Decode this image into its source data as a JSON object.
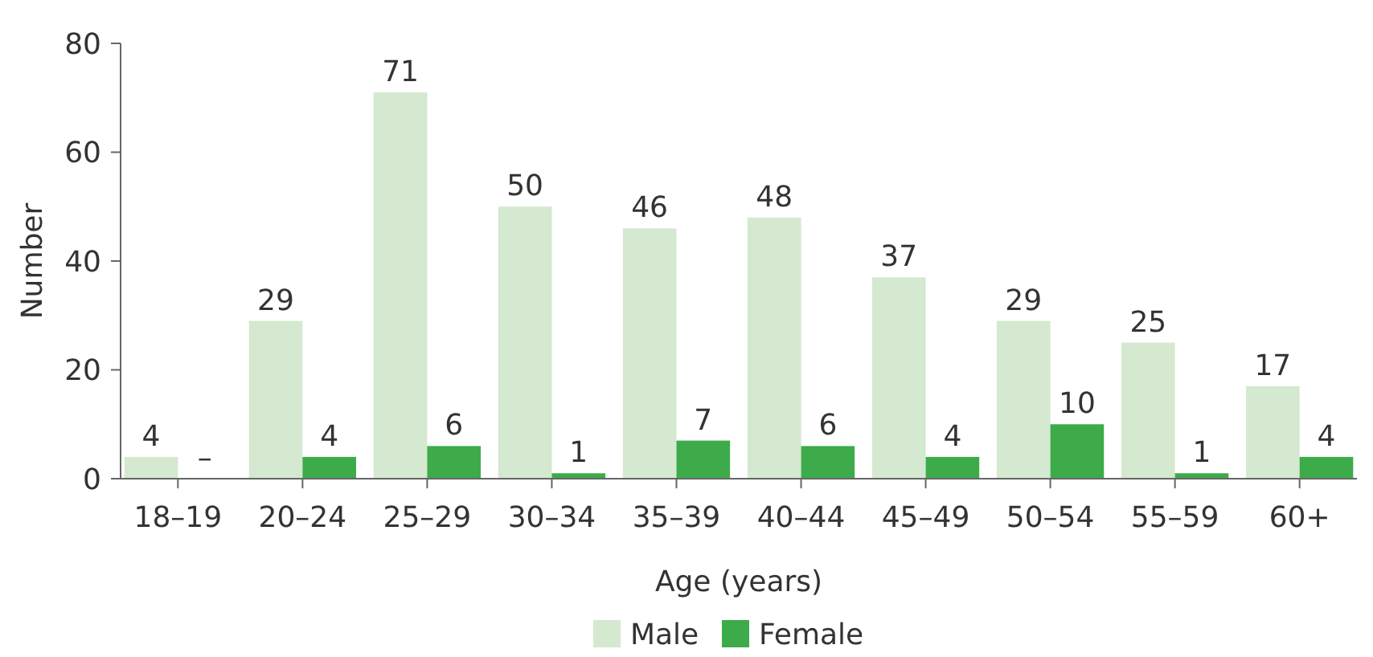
{
  "chart_data": {
    "type": "bar",
    "xlabel": "Age (years)",
    "ylabel": "Number",
    "categories": [
      "18–19",
      "20–24",
      "25–29",
      "30–34",
      "35–39",
      "40–44",
      "45–49",
      "50–54",
      "55–59",
      "60+"
    ],
    "series": [
      {
        "name": "Male",
        "color": "#d5e8d0",
        "values": [
          4,
          29,
          71,
          50,
          46,
          48,
          37,
          29,
          25,
          17
        ],
        "value_labels": [
          "4",
          "29",
          "71",
          "50",
          "46",
          "48",
          "37",
          "29",
          "25",
          "17"
        ]
      },
      {
        "name": "Female",
        "color": "#3dab4a",
        "values": [
          null,
          4,
          6,
          1,
          7,
          6,
          4,
          10,
          1,
          4
        ],
        "value_labels": [
          "–",
          "4",
          "6",
          "1",
          "7",
          "6",
          "4",
          "10",
          "1",
          "4"
        ]
      }
    ],
    "ylim": [
      0,
      80
    ],
    "yticks": [
      0,
      20,
      40,
      60,
      80
    ],
    "grid": false,
    "legend": "bottom"
  }
}
